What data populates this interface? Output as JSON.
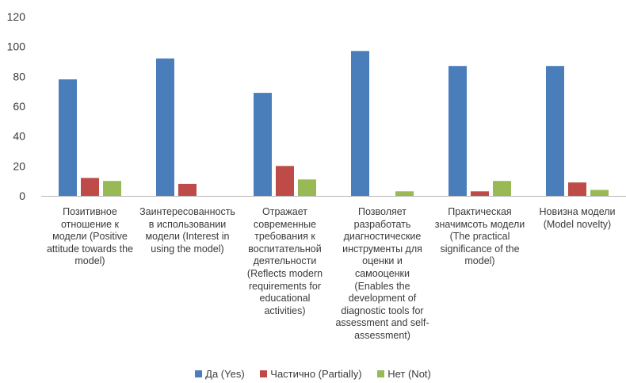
{
  "chart_data": {
    "type": "bar",
    "categories": [
      [
        "Позитивное",
        "отношение к",
        "модели (Positive",
        "attitude towards the",
        "model)"
      ],
      [
        "Заинтересованность",
        "в использовании",
        "модели (Interest in",
        "using the model)"
      ],
      [
        "Отражает",
        "современные",
        "требования к",
        "воспитательной",
        "деятельности",
        "(Reflects modern",
        "requirements for",
        "educational",
        "activities)"
      ],
      [
        "Позволяет",
        "разработать",
        "диагностические",
        "инструменты  для",
        "оценки и",
        "самооценки",
        "(Enables the",
        "development of",
        "diagnostic tools for",
        "assessment and self-",
        "assessment)"
      ],
      [
        "Практическая",
        "значимсоть модели",
        "(The practical",
        "significance of the",
        "model)"
      ],
      [
        "Новизна модели",
        "(Model novelty)"
      ]
    ],
    "series": [
      {
        "name": "Да (Yes)",
        "color": "#4a7ebb",
        "values": [
          78,
          92,
          69,
          97,
          87,
          87
        ]
      },
      {
        "name": "Частично (Partially)",
        "color": "#be4b48",
        "values": [
          12,
          8,
          20,
          0,
          3,
          9
        ]
      },
      {
        "name": "Нет (Not)",
        "color": "#98b954",
        "values": [
          10,
          0,
          11,
          3,
          10,
          4
        ]
      }
    ],
    "ylim": [
      0,
      120
    ],
    "yticks": [
      "0",
      "20",
      "40",
      "60",
      "80",
      "100",
      "120"
    ],
    "grid": false,
    "legend_position": "bottom"
  }
}
